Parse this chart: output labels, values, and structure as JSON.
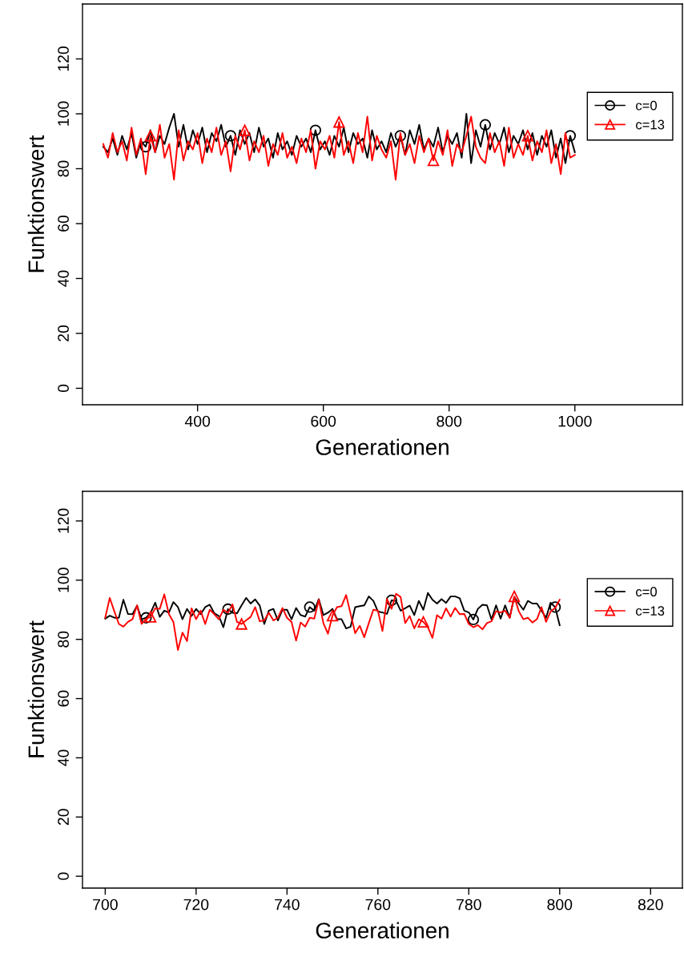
{
  "chart_data": [
    {
      "type": "line",
      "xlabel": "Generationen",
      "ylabel": "Funktionswert",
      "xlim": [
        217,
        1171
      ],
      "ylim": [
        -6,
        140
      ],
      "xticks": [
        400,
        600,
        800,
        1000
      ],
      "yticks": [
        0,
        20,
        40,
        60,
        80,
        100,
        120
      ],
      "grid": false,
      "legend": "right",
      "line_style": "solid",
      "series": [
        {
          "name": "c=0",
          "color": "#000000",
          "x": [
            250,
            257.5,
            265,
            272.5,
            280,
            287.5,
            295,
            302.5,
            310,
            317.5,
            325,
            332.5,
            340,
            347.5,
            355,
            362.5,
            370,
            377.5,
            385,
            392.5,
            400,
            407.5,
            415,
            422.5,
            430,
            437.5,
            445,
            452.5,
            460,
            467.5,
            475,
            482.5,
            490,
            497.5,
            505,
            512.5,
            520,
            527.5,
            535,
            542.5,
            550,
            557.5,
            565,
            572.5,
            580,
            587.5,
            595,
            602.5,
            610,
            617.5,
            625,
            632.5,
            640,
            647.5,
            655,
            662.5,
            670,
            677.5,
            685,
            692.5,
            700,
            707.5,
            715,
            722.5,
            730,
            737.5,
            745,
            752.5,
            760,
            767.5,
            775,
            782.5,
            790,
            797.5,
            805,
            812.5,
            820,
            827.5,
            835,
            842.5,
            850,
            857.5,
            865,
            872.5,
            880,
            887.5,
            895,
            902.5,
            910,
            917.5,
            925,
            932.5,
            940,
            947.5,
            955,
            962.5,
            970,
            977.5,
            985,
            992.5,
            1000
          ],
          "values": [
            88,
            86,
            91,
            85,
            92,
            87,
            93,
            84,
            90,
            88,
            94,
            86,
            92,
            89,
            95,
            100,
            88,
            96,
            87,
            94,
            89,
            95,
            86,
            93,
            90,
            96,
            88,
            92,
            85,
            94,
            89,
            93,
            86,
            95,
            88,
            91,
            84,
            93,
            87,
            90,
            85,
            92,
            88,
            91,
            86,
            94,
            87,
            90,
            85,
            92,
            88,
            95,
            86,
            93,
            89,
            91,
            84,
            94,
            87,
            90,
            86,
            93,
            88,
            92,
            85,
            94,
            89,
            96,
            87,
            91,
            88,
            95,
            86,
            92,
            89,
            93,
            84,
            100,
            82,
            94,
            88,
            96,
            87,
            93,
            89,
            95,
            86,
            92,
            89,
            94,
            87,
            93,
            85,
            92,
            88,
            94,
            84,
            91,
            82,
            92,
            86
          ]
        },
        {
          "name": "c=13",
          "color": "#ff0000",
          "x": [
            250,
            257.5,
            265,
            272.5,
            280,
            287.5,
            295,
            302.5,
            310,
            317.5,
            325,
            332.5,
            340,
            347.5,
            355,
            362.5,
            370,
            377.5,
            385,
            392.5,
            400,
            407.5,
            415,
            422.5,
            430,
            437.5,
            445,
            452.5,
            460,
            467.5,
            475,
            482.5,
            490,
            497.5,
            505,
            512.5,
            520,
            527.5,
            535,
            542.5,
            550,
            557.5,
            565,
            572.5,
            580,
            587.5,
            595,
            602.5,
            610,
            617.5,
            625,
            632.5,
            640,
            647.5,
            655,
            662.5,
            670,
            677.5,
            685,
            692.5,
            700,
            707.5,
            715,
            722.5,
            730,
            737.5,
            745,
            752.5,
            760,
            767.5,
            775,
            782.5,
            790,
            797.5,
            805,
            812.5,
            820,
            827.5,
            835,
            842.5,
            850,
            857.5,
            865,
            872.5,
            880,
            887.5,
            895,
            902.5,
            910,
            917.5,
            925,
            932.5,
            940,
            947.5,
            955,
            962.5,
            970,
            977.5,
            985,
            992.5,
            1000
          ],
          "values": [
            89,
            84,
            93,
            86,
            90,
            83,
            95,
            85,
            91,
            78,
            92,
            86,
            96,
            84,
            89,
            76,
            94,
            83,
            90,
            87,
            93,
            82,
            91,
            86,
            95,
            85,
            90,
            79,
            92,
            87,
            94,
            83,
            90,
            86,
            92,
            81,
            89,
            85,
            93,
            84,
            88,
            82,
            91,
            86,
            94,
            80,
            90,
            87,
            92,
            84,
            97,
            85,
            90,
            82,
            93,
            86,
            99,
            83,
            92,
            87,
            84,
            90,
            76,
            93,
            85,
            89,
            82,
            92,
            86,
            91,
            83,
            90,
            85,
            94,
            81,
            89,
            86,
            92,
            99,
            88,
            84,
            82,
            93,
            86,
            90,
            81,
            95,
            84,
            89,
            85,
            92,
            83,
            90,
            86,
            94,
            82,
            89,
            78,
            93,
            84,
            85
          ]
        }
      ]
    },
    {
      "type": "line",
      "xlabel": "Generationen",
      "ylabel": "Funktionswert",
      "xlim": [
        695,
        827
      ],
      "ylim": [
        -4,
        130
      ],
      "xticks": [
        700,
        720,
        740,
        760,
        780,
        800,
        820
      ],
      "yticks": [
        0,
        20,
        40,
        60,
        80,
        100,
        120
      ],
      "grid": false,
      "legend": "right",
      "line_style": "solid",
      "series": [
        {
          "name": "c=0",
          "color": "#000000",
          "x": [
            700,
            701,
            702,
            703,
            704,
            705,
            706,
            707,
            708,
            709,
            710,
            711,
            712,
            713,
            714,
            715,
            716,
            717,
            718,
            719,
            720,
            721,
            722,
            723,
            724,
            725,
            726,
            727,
            728,
            729,
            730,
            731,
            732,
            733,
            734,
            735,
            736,
            737,
            738,
            739,
            740,
            741,
            742,
            743,
            744,
            745,
            746,
            747,
            748,
            749,
            750,
            751,
            752,
            753,
            754,
            755,
            756,
            757,
            758,
            759,
            760,
            761,
            762,
            763,
            764,
            765,
            766,
            767,
            768,
            769,
            770,
            771,
            772,
            773,
            774,
            775,
            776,
            777,
            778,
            779,
            780,
            781,
            782,
            783,
            784,
            785,
            786,
            787,
            788,
            789,
            790,
            791,
            792,
            793,
            794,
            795,
            796,
            797,
            798,
            799,
            800
          ],
          "values": [
            87,
            88,
            87.3,
            87.3,
            93.4,
            88.6,
            88.5,
            91.4,
            86.8,
            87.3,
            89,
            92.4,
            87.6,
            89.7,
            89,
            92.6,
            90.9,
            86.8,
            90.3,
            87.9,
            90.3,
            88.5,
            90.9,
            91.7,
            88.8,
            87.9,
            84.1,
            90.2,
            89,
            88.8,
            91.5,
            94,
            92.1,
            93.5,
            91.4,
            85.2,
            89.7,
            90.3,
            86.4,
            90,
            90,
            86.8,
            90.6,
            88.2,
            87.7,
            90.9,
            89.7,
            93.6,
            88.2,
            89,
            90.3,
            86.8,
            86.8,
            83.7,
            84.3,
            90.9,
            91.2,
            91.5,
            94.5,
            93,
            89.4,
            89.1,
            88.6,
            93.2,
            93,
            89.7,
            90.5,
            91.4,
            88.2,
            93,
            90,
            95.7,
            93.4,
            92.1,
            93.6,
            92.3,
            94.5,
            94.5,
            93.9,
            89.7,
            89.1,
            86.7,
            90.3,
            91.7,
            91.5,
            86.7,
            91.5,
            87,
            91.5,
            87.3,
            94.3,
            92.1,
            90,
            93,
            92.1,
            92.1,
            89.7,
            87.3,
            92.4,
            90.9,
            84.8
          ]
        },
        {
          "name": "c=13",
          "color": "#ff0000",
          "x": [
            700,
            701,
            702,
            703,
            704,
            705,
            706,
            707,
            708,
            709,
            710,
            711,
            712,
            713,
            714,
            715,
            716,
            717,
            718,
            719,
            720,
            721,
            722,
            723,
            724,
            725,
            726,
            727,
            728,
            729,
            730,
            731,
            732,
            733,
            734,
            735,
            736,
            737,
            738,
            739,
            740,
            741,
            742,
            743,
            744,
            745,
            746,
            747,
            748,
            749,
            750,
            751,
            752,
            753,
            754,
            755,
            756,
            757,
            758,
            759,
            760,
            761,
            762,
            763,
            764,
            765,
            766,
            767,
            768,
            769,
            770,
            771,
            772,
            773,
            774,
            775,
            776,
            777,
            778,
            779,
            780,
            781,
            782,
            783,
            784,
            785,
            786,
            787,
            788,
            789,
            790,
            791,
            792,
            793,
            794,
            795,
            796,
            797,
            798,
            799,
            800
          ],
          "values": [
            87.3,
            94,
            89.5,
            85.2,
            84.3,
            85.9,
            86.8,
            91.5,
            85.2,
            87,
            87.6,
            90.5,
            90.3,
            95.2,
            88.6,
            85.9,
            76.4,
            82.3,
            79.4,
            90.5,
            86.8,
            89.7,
            85.2,
            90,
            88.5,
            86.8,
            90,
            89,
            91.8,
            85.9,
            85.2,
            86.4,
            87.6,
            90.9,
            86.1,
            86.4,
            89,
            86.4,
            87.3,
            90.6,
            87.3,
            85.9,
            79.6,
            85.7,
            84.3,
            87.3,
            87,
            93.4,
            85.5,
            81.9,
            88,
            90.9,
            91.2,
            95,
            88.6,
            82.1,
            84.6,
            80.7,
            85.5,
            90,
            89.7,
            82.8,
            93.6,
            90.3,
            95.4,
            94.3,
            85.5,
            87.9,
            83.7,
            86.8,
            85.9,
            84.1,
            80.5,
            88.2,
            87,
            90.5,
            87.7,
            90.6,
            88.5,
            88.6,
            85.2,
            84.1,
            84.8,
            83.4,
            85.5,
            86.1,
            89.5,
            89.1,
            89.7,
            87.3,
            94.5,
            89.5,
            86.8,
            87.3,
            85.7,
            86.8,
            90.9,
            85.9,
            89.4,
            90.6,
            93.4
          ]
        }
      ]
    }
  ]
}
